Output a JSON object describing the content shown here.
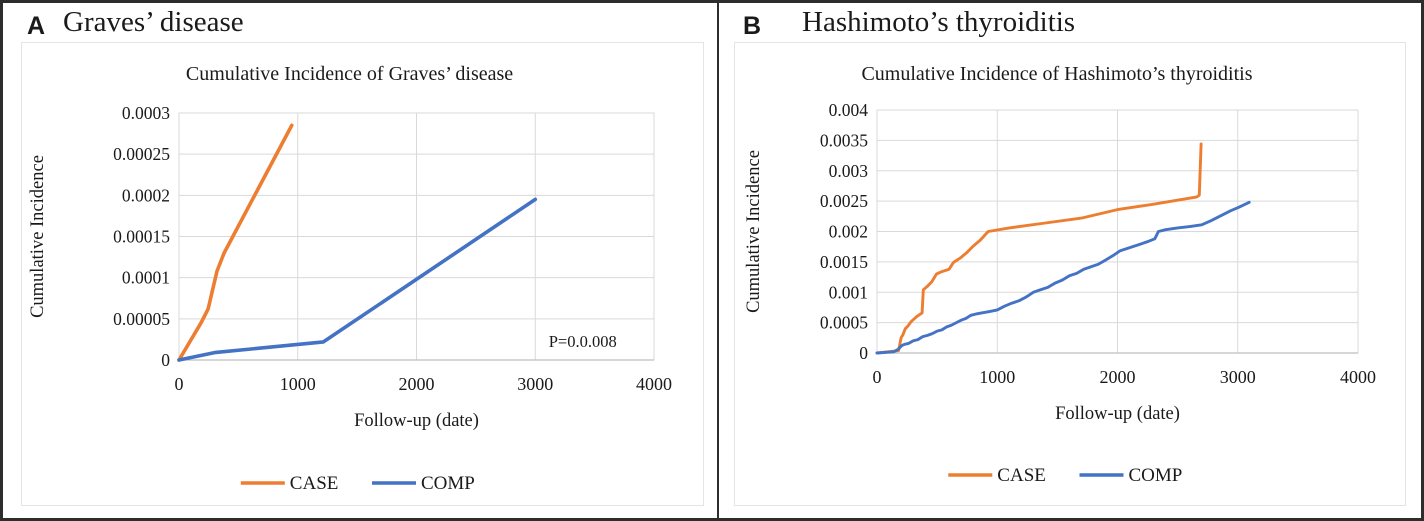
{
  "figure": {
    "panels": [
      {
        "label": "A",
        "title": "Graves’ disease"
      },
      {
        "label": "B",
        "title": "Hashimoto’s thyroiditis"
      }
    ]
  },
  "colors": {
    "case_orange": "#ED7D31",
    "comp_blue": "#4472C4",
    "gridline": "#D9D9D9",
    "axis_line": "#BFBFBF",
    "text": "#1a1a1a",
    "frame": "#2d2d2d"
  },
  "chart_data": [
    {
      "type": "line",
      "title": "Cumulative Incidence of Graves’ disease",
      "xlabel": "Follow-up (date)",
      "ylabel": "Cumulative Incidence",
      "xlim": [
        0,
        4000
      ],
      "ylim": [
        0,
        0.0003
      ],
      "grid": true,
      "legend_position": "bottom",
      "xtick_values": [
        0,
        1000,
        2000,
        3000,
        4000
      ],
      "xtick_labels": [
        "0",
        "1000",
        "2000",
        "3000",
        "4000"
      ],
      "ytick_values": [
        0,
        5e-05,
        0.0001,
        0.00015,
        0.0002,
        0.00025,
        0.0003
      ],
      "ytick_labels": [
        "0",
        "0.00005",
        "0.0001",
        "0.00015",
        "0.0002",
        "0.00025",
        "0.0003"
      ],
      "annotation": {
        "text": "P=0.0.008",
        "x": 3400,
        "y": 2.3e-05
      },
      "series": [
        {
          "name": "CASE",
          "color": "#ED7D31",
          "points": [
            [
              0,
              0
            ],
            [
              185,
              4.5e-05
            ],
            [
              245,
              6.2e-05
            ],
            [
              320,
              0.000108
            ],
            [
              380,
              0.00013
            ],
            [
              950,
              0.000285
            ]
          ]
        },
        {
          "name": "COMP",
          "color": "#4472C4",
          "points": [
            [
              0,
              0
            ],
            [
              300,
              9e-06
            ],
            [
              1216,
              2.2e-05
            ],
            [
              3000,
              0.000195
            ]
          ]
        }
      ]
    },
    {
      "type": "line",
      "title": "Cumulative Incidence of Hashimoto’s thyroiditis",
      "xlabel": "Follow-up (date)",
      "ylabel": "Cumulative Incidence",
      "xlim": [
        0,
        4000
      ],
      "ylim": [
        0,
        0.004
      ],
      "grid": true,
      "legend_position": "bottom",
      "xtick_values": [
        0,
        1000,
        2000,
        3000,
        4000
      ],
      "xtick_labels": [
        "0",
        "1000",
        "2000",
        "3000",
        "4000"
      ],
      "ytick_values": [
        0,
        0.0005,
        0.001,
        0.0015,
        0.002,
        0.0025,
        0.003,
        0.0035,
        0.004
      ],
      "ytick_labels": [
        "0",
        "0.0005",
        "0.001",
        "0.0015",
        "0.002",
        "0.0025",
        "0.003",
        "0.0035",
        "0.004"
      ],
      "annotation": null,
      "series": [
        {
          "name": "CASE",
          "color": "#ED7D31",
          "points": [
            [
              0,
              0
            ],
            [
              180,
              4e-05
            ],
            [
              200,
              0.00025
            ],
            [
              215,
              0.0003
            ],
            [
              235,
              0.0004
            ],
            [
              255,
              0.00044
            ],
            [
              285,
              0.00052
            ],
            [
              330,
              0.0006
            ],
            [
              375,
              0.00066
            ],
            [
              385,
              0.00104
            ],
            [
              420,
              0.0011
            ],
            [
              455,
              0.00117
            ],
            [
              495,
              0.0013
            ],
            [
              540,
              0.00134
            ],
            [
              600,
              0.00138
            ],
            [
              635,
              0.00149
            ],
            [
              690,
              0.00156
            ],
            [
              745,
              0.00165
            ],
            [
              800,
              0.00176
            ],
            [
              860,
              0.00186
            ],
            [
              925,
              0.002
            ],
            [
              1100,
              0.00206
            ],
            [
              1400,
              0.00214
            ],
            [
              1700,
              0.00222
            ],
            [
              2000,
              0.00236
            ],
            [
              2300,
              0.00245
            ],
            [
              2660,
              0.00257
            ],
            [
              2680,
              0.0026
            ],
            [
              2695,
              0.00344
            ]
          ]
        },
        {
          "name": "COMP",
          "color": "#4472C4",
          "points": [
            [
              0,
              0
            ],
            [
              140,
              2e-05
            ],
            [
              175,
              6e-05
            ],
            [
              205,
              0.00012
            ],
            [
              225,
              0.00014
            ],
            [
              265,
              0.00016
            ],
            [
              300,
              0.0002
            ],
            [
              340,
              0.00022
            ],
            [
              380,
              0.00027
            ],
            [
              420,
              0.00029
            ],
            [
              460,
              0.00032
            ],
            [
              500,
              0.00036
            ],
            [
              540,
              0.00038
            ],
            [
              580,
              0.00043
            ],
            [
              620,
              0.00046
            ],
            [
              660,
              0.0005
            ],
            [
              700,
              0.00054
            ],
            [
              740,
              0.00057
            ],
            [
              780,
              0.00062
            ],
            [
              820,
              0.00064
            ],
            [
              870,
              0.00066
            ],
            [
              930,
              0.00068
            ],
            [
              1000,
              0.00071
            ],
            [
              1060,
              0.00077
            ],
            [
              1120,
              0.00082
            ],
            [
              1180,
              0.00086
            ],
            [
              1240,
              0.00092
            ],
            [
              1300,
              0.001
            ],
            [
              1360,
              0.00104
            ],
            [
              1420,
              0.00108
            ],
            [
              1480,
              0.00115
            ],
            [
              1540,
              0.0012
            ],
            [
              1600,
              0.00127
            ],
            [
              1660,
              0.00131
            ],
            [
              1720,
              0.00138
            ],
            [
              1780,
              0.00142
            ],
            [
              1840,
              0.00146
            ],
            [
              1900,
              0.00153
            ],
            [
              1960,
              0.0016
            ],
            [
              2020,
              0.00168
            ],
            [
              2080,
              0.00172
            ],
            [
              2140,
              0.00176
            ],
            [
              2200,
              0.0018
            ],
            [
              2260,
              0.00184
            ],
            [
              2310,
              0.00188
            ],
            [
              2340,
              0.002
            ],
            [
              2400,
              0.00203
            ],
            [
              2500,
              0.00206
            ],
            [
              2600,
              0.00208
            ],
            [
              2700,
              0.00211
            ],
            [
              2780,
              0.00218
            ],
            [
              2860,
              0.00226
            ],
            [
              2940,
              0.00234
            ],
            [
              3010,
              0.0024
            ],
            [
              3095,
              0.00248
            ]
          ]
        }
      ]
    }
  ]
}
